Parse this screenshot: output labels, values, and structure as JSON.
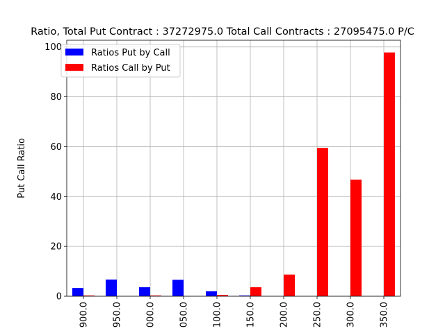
{
  "chart_data": {
    "type": "bar",
    "title": "Ratio, Total Put Contract : 37272975.0 Total Call Contracts : 27095475.0 P/C",
    "xlabel": "",
    "ylabel": "Put Call Ratio",
    "categories": [
      "900.0",
      "950.0",
      "000.0",
      "050.0",
      "100.0",
      "150.0",
      "200.0",
      "250.0",
      "300.0",
      "350.0"
    ],
    "series": [
      {
        "name": "Ratios Put by Call",
        "color": "#0000ff",
        "values": [
          3.3,
          6.7,
          3.6,
          6.6,
          2.0,
          0.3,
          0,
          0,
          0,
          0
        ]
      },
      {
        "name": "Ratios Call by Put",
        "color": "#ff0000",
        "values": [
          0.3,
          0,
          0.3,
          0,
          0.5,
          3.6,
          8.7,
          59.5,
          46.8,
          97.8
        ]
      }
    ],
    "ylim": [
      0,
      102.7
    ],
    "yticks": [
      "0",
      "20",
      "40",
      "60",
      "80",
      "100"
    ],
    "grid": true,
    "legend_position": "upper left"
  }
}
